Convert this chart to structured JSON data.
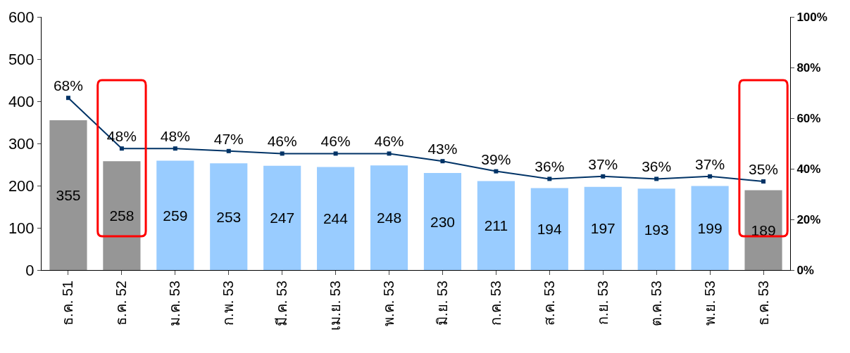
{
  "chart_data": {
    "type": "bar",
    "categories": [
      "ธ.ค. 51",
      "ธ.ค. 52",
      "ม.ค. 53",
      "ก.พ. 53",
      "มี.ค. 53",
      "เม.ย. 53",
      "พ.ค. 53",
      "มิ.ย. 53",
      "ก.ค. 53",
      "ส.ค. 53",
      "ก.ย. 53",
      "ต.ค. 53",
      "พ.ย. 53",
      "ธ.ค. 53"
    ],
    "series": [
      {
        "colors": [
          "#969696",
          "#969696",
          "#99ccff",
          "#99ccff",
          "#99ccff",
          "#99ccff",
          "#99ccff",
          "#99ccff",
          "#99ccff",
          "#99ccff",
          "#99ccff",
          "#99ccff",
          "#99ccff",
          "#969696"
        ],
        "values": [
          355,
          258,
          259,
          253,
          247,
          244,
          248,
          230,
          211,
          194,
          197,
          193,
          199,
          189
        ],
        "value_labels": [
          "355",
          "258",
          "259",
          "253",
          "247",
          "244",
          "248",
          "230",
          "211",
          "194",
          "197",
          "193",
          "199",
          "189"
        ]
      },
      {
        "type": "line",
        "axis": "y2",
        "color": "#003366",
        "marker": "square",
        "values": [
          68,
          48,
          48,
          47,
          46,
          46,
          46,
          43,
          39,
          36,
          37,
          36,
          37,
          35
        ],
        "value_labels": [
          "68%",
          "48%",
          "48%",
          "47%",
          "46%",
          "46%",
          "46%",
          "43%",
          "39%",
          "36%",
          "37%",
          "36%",
          "37%",
          "35%"
        ]
      }
    ],
    "ylim": [
      0,
      600
    ],
    "yticks": [
      0,
      100,
      200,
      300,
      400,
      500,
      600
    ],
    "y2lim": [
      0,
      100
    ],
    "y2ticks": [
      {
        "value": 0,
        "label": "0%"
      },
      {
        "value": 20,
        "label": "20%"
      },
      {
        "value": 40,
        "label": "40%"
      },
      {
        "value": 60,
        "label": "60%"
      },
      {
        "value": 80,
        "label": "80%"
      },
      {
        "value": 100,
        "label": "100%"
      }
    ]
  }
}
